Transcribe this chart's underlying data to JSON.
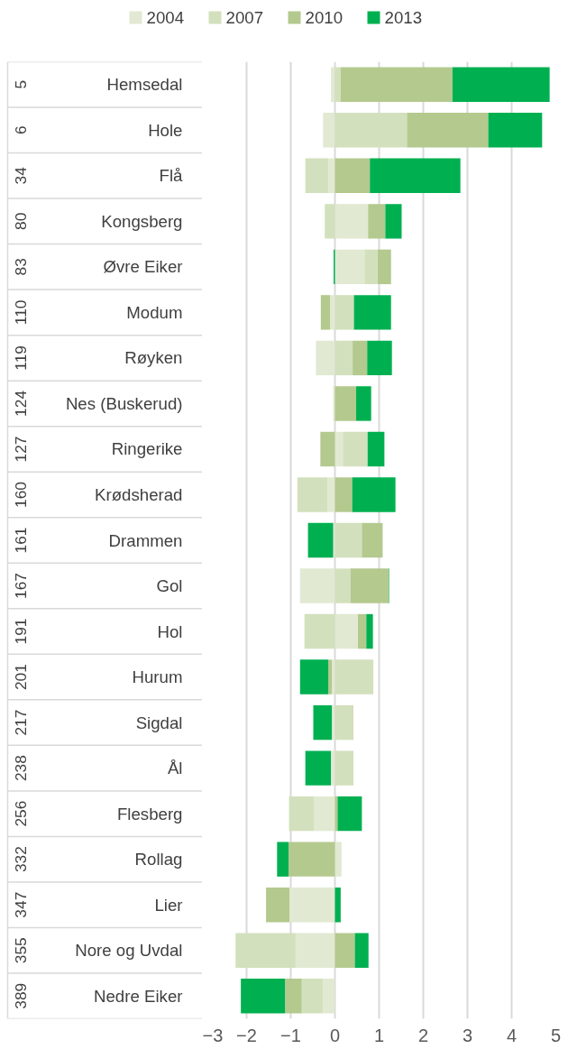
{
  "chart_data": {
    "type": "bar",
    "orientation": "horizontal",
    "stacked": true,
    "categories": [
      "Hemsedal",
      "Hole",
      "Flå",
      "Kongsberg",
      "Øvre Eiker",
      "Modum",
      "Røyken",
      "Nes (Buskerud)",
      "Ringerike",
      "Krødsherad",
      "Drammen",
      "Gol",
      "Hol",
      "Hurum",
      "Sigdal",
      "Ål",
      "Flesberg",
      "Rollag",
      "Lier",
      "Nore og Uvdal",
      "Nedre Eiker"
    ],
    "annotations": [
      "5",
      "6",
      "34",
      "80",
      "83",
      "110",
      "119",
      "124",
      "127",
      "160",
      "161",
      "167",
      "191",
      "201",
      "217",
      "238",
      "256",
      "332",
      "347",
      "355",
      "389"
    ],
    "series": [
      {
        "name": "2004",
        "color": "#e2e9d2",
        "values": [
          -0.09,
          -0.27,
          -0.15,
          0.75,
          0.67,
          -0.11,
          -0.43,
          -0.04,
          0.18,
          -0.17,
          -0.04,
          -0.79,
          0.52,
          -0.07,
          -0.07,
          -0.09,
          -0.47,
          0.15,
          -1.03,
          -0.89,
          -0.27
        ]
      },
      {
        "name": "2007",
        "color": "#d3e0bd",
        "values": [
          0.13,
          1.63,
          -0.52,
          -0.23,
          0.3,
          0.43,
          0.4,
          null,
          0.56,
          -0.68,
          0.61,
          0.35,
          -0.69,
          0.87,
          0.39,
          0.42,
          -0.57,
          null,
          null,
          -1.36,
          -0.48
        ]
      },
      {
        "name": "2010",
        "color": "#b4c98e",
        "values": [
          2.53,
          1.84,
          0.79,
          0.39,
          0.3,
          -0.21,
          0.33,
          0.48,
          -0.33,
          0.39,
          0.47,
          0.87,
          0.19,
          -0.08,
          0.02,
          null,
          0.06,
          -1.05,
          -0.53,
          0.45,
          -0.38
        ]
      },
      {
        "name": "2013",
        "color": "#00b050",
        "values": [
          2.2,
          1.22,
          2.05,
          0.37,
          -0.03,
          0.84,
          0.56,
          0.34,
          0.38,
          0.98,
          -0.57,
          0.01,
          0.15,
          -0.64,
          -0.42,
          -0.58,
          0.55,
          -0.26,
          0.13,
          0.31,
          -1.0
        ]
      }
    ],
    "xlim": [
      -3,
      5
    ],
    "xticks": [
      -3,
      -2,
      -1,
      0,
      1,
      2,
      3,
      4,
      5
    ],
    "grid": "x",
    "legend": "top"
  }
}
